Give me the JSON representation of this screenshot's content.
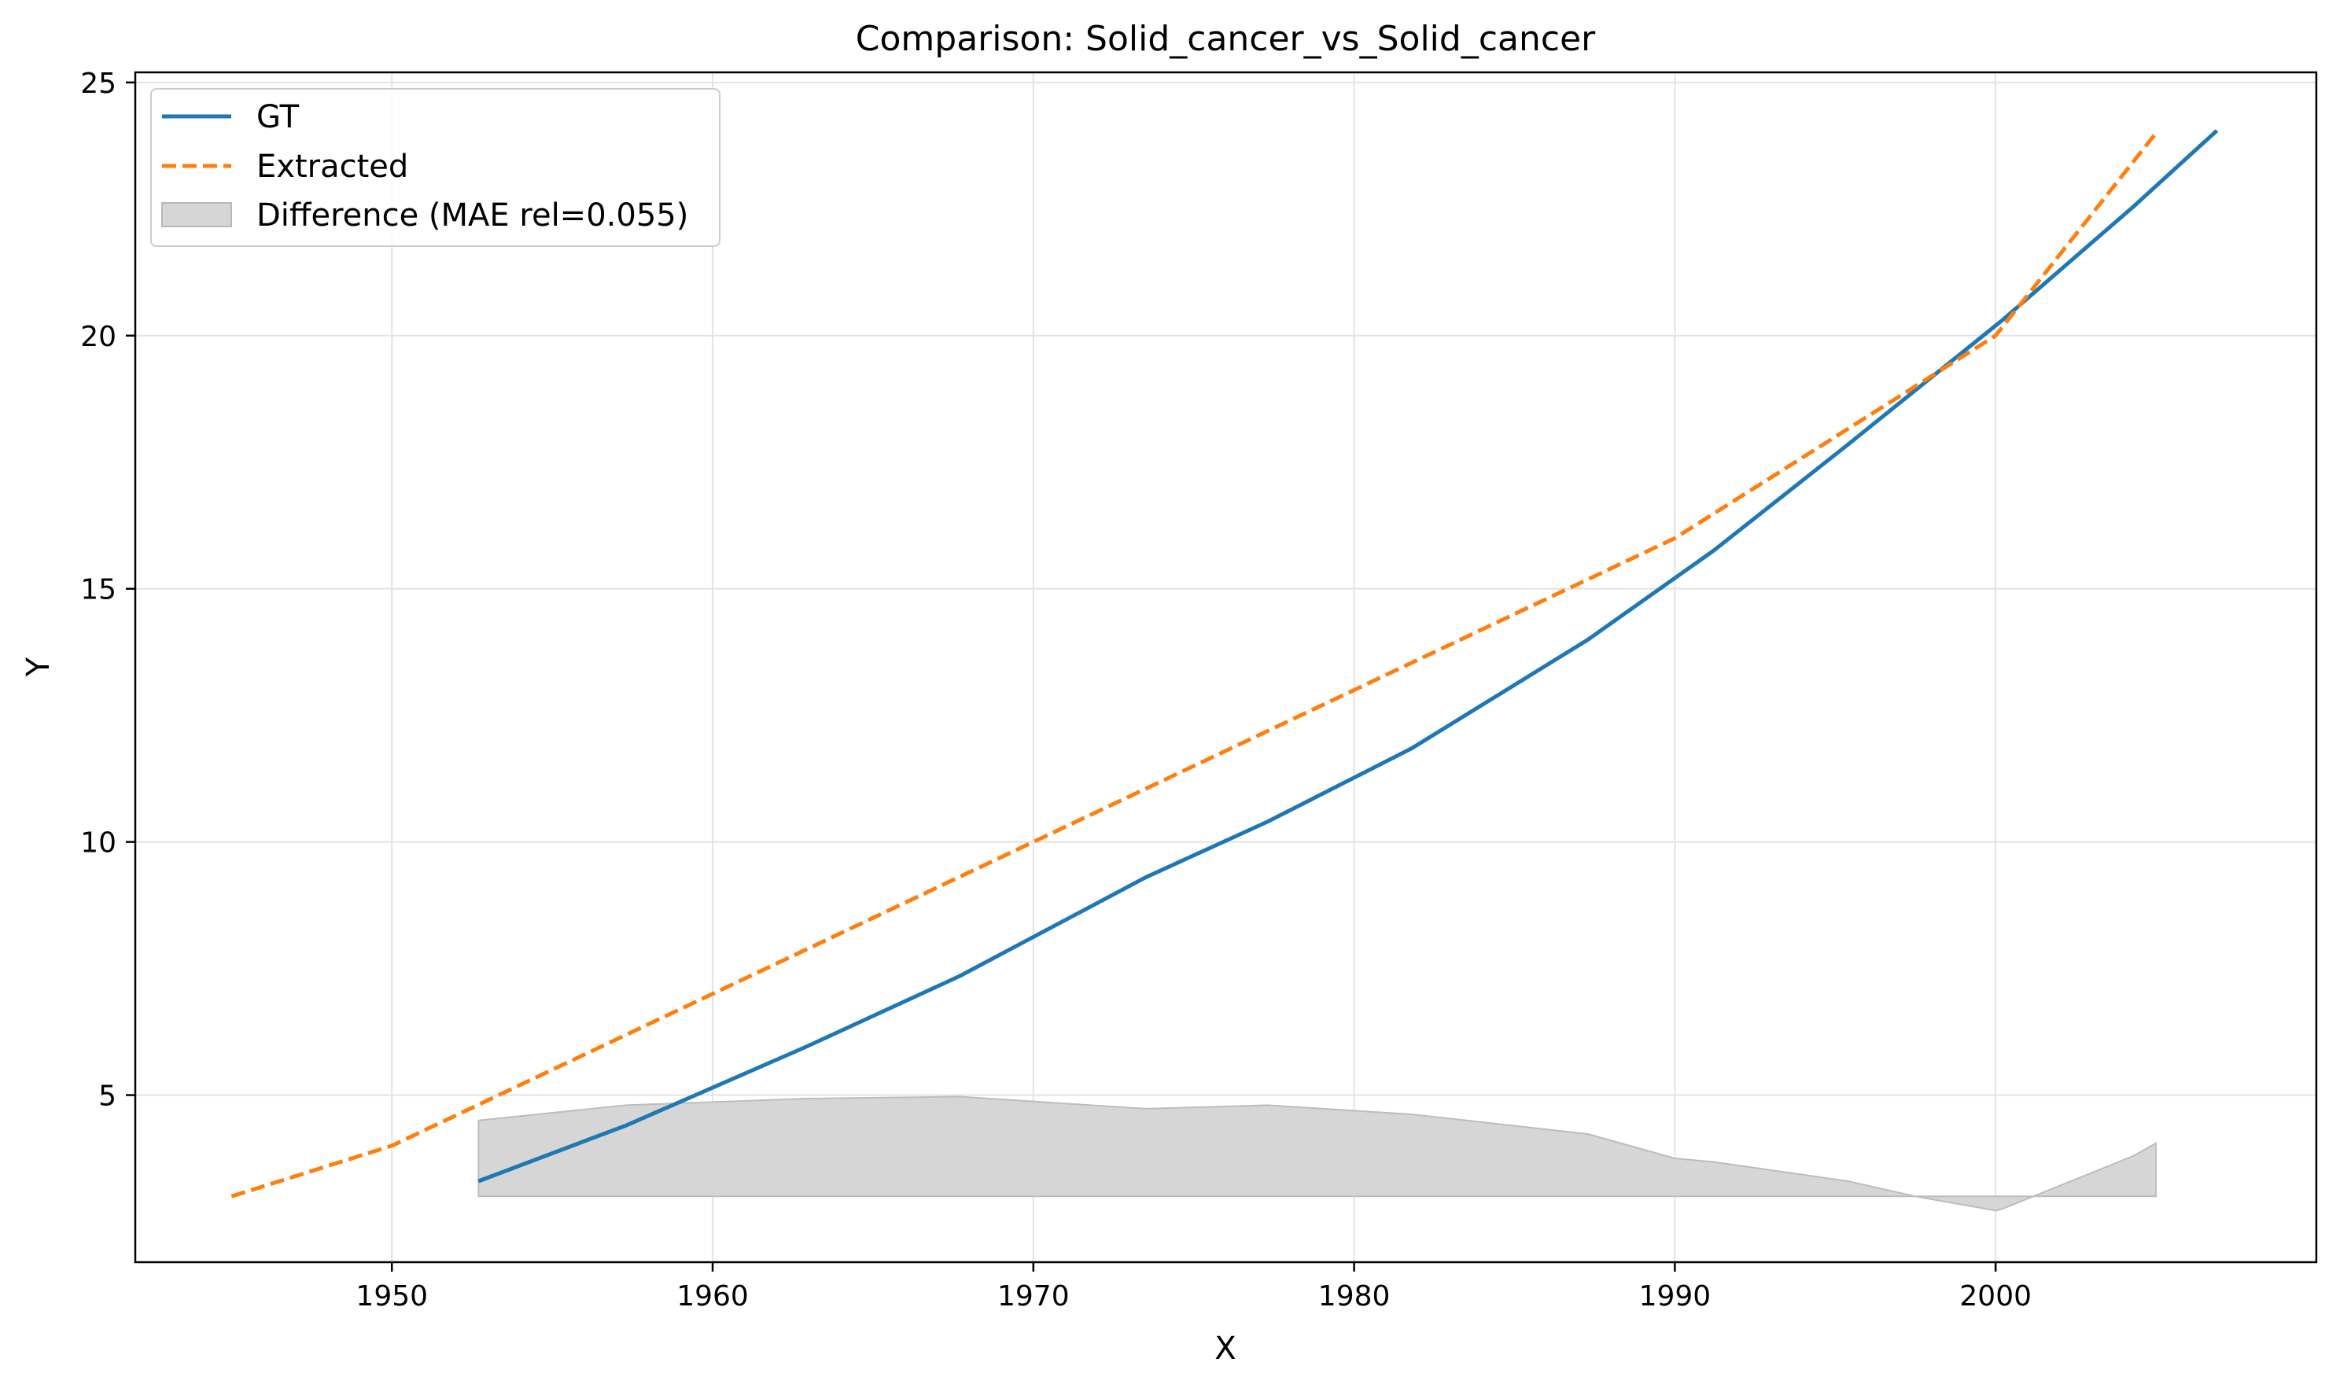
{
  "chart_data": {
    "type": "line",
    "title": "Comparison: Solid_cancer_vs_Solid_cancer",
    "xlabel": "X",
    "ylabel": "Y",
    "xlim": [
      1942,
      2010
    ],
    "ylim": [
      1.7,
      25.2
    ],
    "xticks": [
      1950,
      1960,
      1970,
      1980,
      1990,
      2000
    ],
    "yticks": [
      5,
      10,
      15,
      20,
      25
    ],
    "grid": true,
    "legend_position": "top-left",
    "series": [
      {
        "name": "GT",
        "style": "solid",
        "color": "#1f77b4",
        "x": [
          1952.7,
          1957.3,
          1962.9,
          1967.7,
          1973.5,
          1977.3,
          1981.8,
          1987.3,
          1991.2,
          1995.4,
          2000.2,
          2004.3,
          2006.9
        ],
        "y": [
          3.3,
          4.4,
          5.95,
          7.35,
          9.3,
          10.4,
          11.85,
          14.0,
          15.75,
          17.85,
          20.3,
          22.55,
          24.05
        ]
      },
      {
        "name": "Extracted",
        "style": "dashed",
        "color": "#ff7f0e",
        "x": [
          1945,
          1950,
          1955,
          1960,
          1965,
          1970,
          1975,
          1980,
          1985,
          1990,
          1995,
          2000,
          2005
        ],
        "y": [
          3.0,
          4.0,
          5.5,
          7.0,
          8.5,
          10.0,
          11.5,
          13.0,
          14.5,
          16.0,
          18.0,
          20.0,
          24.0
        ]
      },
      {
        "name": "Difference (MAE rel=0.055)",
        "style": "fill",
        "color": "#b0b0b0",
        "baseline": 3.0,
        "x": [
          1952.7,
          1957.3,
          1962.9,
          1967.7,
          1973.5,
          1977.3,
          1981.8,
          1987.3,
          1990.0,
          1991.2,
          1995.4,
          1997.5,
          2000.0,
          2000.2,
          2004.3,
          2005.0
        ],
        "y": [
          4.5,
          4.8,
          4.93,
          4.97,
          4.73,
          4.8,
          4.62,
          4.23,
          3.75,
          3.68,
          3.3,
          3.0,
          2.72,
          2.75,
          3.8,
          4.05
        ]
      }
    ]
  }
}
